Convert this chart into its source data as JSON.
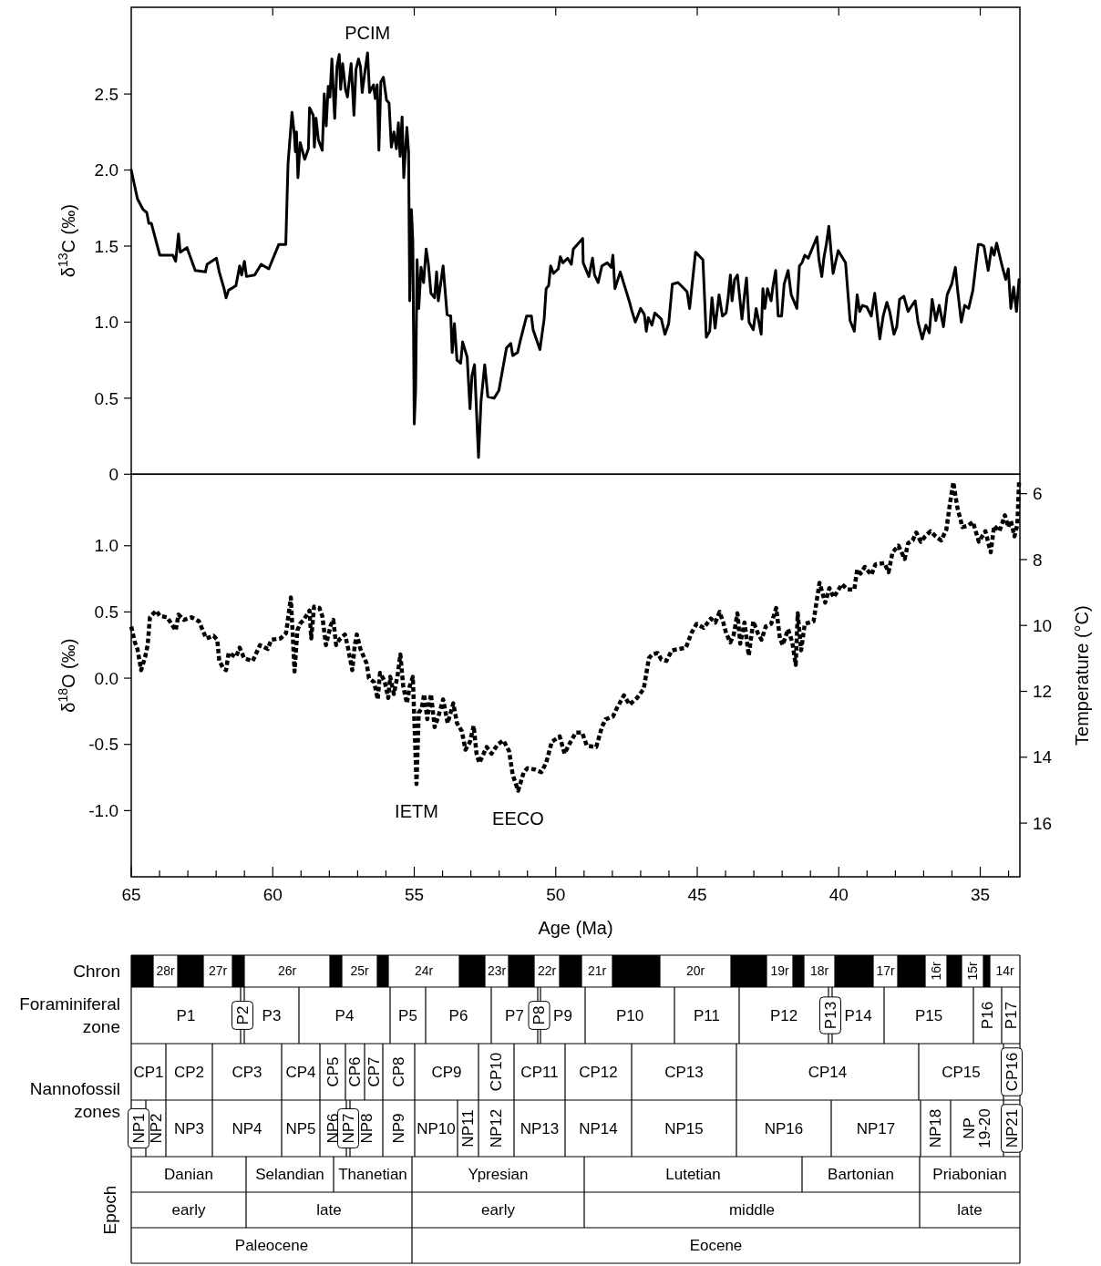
{
  "chart_data": [
    {
      "type": "line",
      "ylabel": "δ$^{13}$C (‰)",
      "xlim": [
        65,
        33.6
      ],
      "ylim": [
        0,
        3.07
      ],
      "xticks": [
        {
          "value": 60,
          "label": null
        },
        {
          "value": 55,
          "label": null
        },
        {
          "value": 50,
          "label": null
        },
        {
          "value": 45,
          "label": null
        },
        {
          "value": 40,
          "label": null
        },
        {
          "value": 35,
          "label": null
        }
      ],
      "yticks": [
        0,
        0.5,
        {
          "value": 1,
          "label": "1.0"
        },
        1.5,
        {
          "value": 2,
          "label": "2.0"
        },
        2.5
      ],
      "tick_labels": "y",
      "annotations": [
        {
          "text": "PCIM",
          "x": 56.65,
          "y": 2.77
        }
      ],
      "series": [
        {
          "color": "#000000",
          "line_style": "solid",
          "x": [
            65.0,
            64.78,
            64.58,
            64.45,
            64.38,
            64.29,
            63.99,
            63.53,
            63.43,
            63.33,
            63.27,
            63.03,
            62.74,
            62.38,
            62.32,
            61.99,
            61.89,
            61.72,
            61.65,
            61.56,
            61.3,
            61.17,
            61.1,
            61.0,
            60.93,
            60.64,
            60.41,
            60.14,
            59.79,
            59.54,
            59.46,
            59.32,
            59.24,
            59.2,
            59.16,
            59.11,
            59.03,
            58.87,
            58.74,
            58.7,
            58.57,
            58.53,
            58.47,
            58.39,
            58.25,
            58.18,
            58.11,
            58.04,
            57.98,
            57.91,
            57.85,
            57.81,
            57.73,
            57.65,
            57.6,
            57.53,
            57.43,
            57.36,
            57.23,
            57.13,
            57.06,
            56.97,
            56.9,
            56.84,
            56.77,
            56.65,
            56.58,
            56.44,
            56.38,
            56.31,
            56.25,
            56.18,
            56.09,
            55.98,
            55.89,
            55.81,
            55.72,
            55.63,
            55.56,
            55.5,
            55.43,
            55.37,
            55.26,
            55.2,
            55.16,
            55.1,
            55.05,
            55.0,
            54.95,
            54.9,
            54.84,
            54.76,
            54.67,
            54.58,
            54.5,
            54.41,
            54.28,
            54.21,
            54.15,
            53.98,
            53.84,
            53.71,
            53.66,
            53.58,
            53.49,
            53.36,
            53.29,
            53.13,
            53.03,
            52.96,
            52.87,
            52.73,
            52.64,
            52.51,
            52.4,
            52.18,
            52.01,
            51.74,
            51.59,
            51.52,
            51.35,
            51.25,
            51.03,
            50.86,
            50.8,
            50.56,
            50.41,
            50.34,
            50.25,
            50.18,
            50.08,
            49.91,
            49.84,
            49.75,
            49.58,
            49.45,
            49.38,
            49.05,
            49.03,
            48.83,
            48.7,
            48.63,
            48.5,
            48.37,
            48.18,
            48.04,
            47.98,
            47.91,
            47.72,
            47.39,
            47.32,
            47.19,
            47.0,
            46.87,
            46.8,
            46.73,
            46.6,
            46.5,
            46.27,
            46.14,
            46.01,
            45.88,
            45.68,
            45.36,
            45.27,
            45.06,
            44.8,
            44.68,
            44.56,
            44.48,
            44.37,
            44.23,
            44.11,
            43.98,
            43.91,
            43.83,
            43.77,
            43.68,
            43.58,
            43.51,
            43.42,
            43.33,
            43.26,
            43.17,
            43.02,
            42.92,
            42.82,
            42.74,
            42.68,
            42.61,
            42.52,
            42.39,
            42.33,
            42.23,
            42.14,
            42.02,
            41.93,
            41.79,
            41.68,
            41.48,
            41.39,
            41.3,
            41.2,
            41.08,
            40.77,
            40.7,
            40.6,
            40.52,
            40.44,
            40.35,
            40.27,
            40.2,
            40.02,
            39.76,
            39.6,
            39.45,
            39.35,
            39.26,
            39.16,
            39.01,
            38.85,
            38.73,
            38.55,
            38.43,
            38.3,
            38.2,
            38.05,
            37.95,
            37.85,
            37.7,
            37.55,
            37.45,
            37.3,
            37.2,
            37.05,
            36.92,
            36.8,
            36.7,
            36.57,
            36.45,
            36.3,
            36.17,
            36.01,
            35.88,
            35.8,
            35.67,
            35.55,
            35.41,
            35.26,
            35.07,
            34.97,
            34.87,
            34.72,
            34.6,
            34.51,
            34.42,
            34.32,
            34.2,
            34.1,
            34.01,
            33.92,
            33.82,
            33.72,
            33.63
          ],
          "values": [
            2.0,
            1.81,
            1.74,
            1.72,
            1.65,
            1.65,
            1.44,
            1.44,
            1.4,
            1.58,
            1.46,
            1.49,
            1.34,
            1.33,
            1.38,
            1.42,
            1.33,
            1.22,
            1.16,
            1.21,
            1.24,
            1.37,
            1.31,
            1.4,
            1.3,
            1.31,
            1.38,
            1.35,
            1.51,
            1.51,
            2.04,
            2.38,
            2.24,
            2.12,
            2.25,
            1.95,
            2.18,
            2.07,
            2.14,
            2.41,
            2.36,
            2.15,
            2.34,
            2.2,
            2.13,
            2.5,
            2.29,
            2.55,
            2.48,
            2.73,
            2.48,
            2.34,
            2.68,
            2.76,
            2.53,
            2.7,
            2.53,
            2.48,
            2.7,
            2.36,
            2.66,
            2.73,
            2.68,
            2.51,
            2.61,
            2.77,
            2.51,
            2.56,
            2.47,
            2.56,
            2.13,
            2.58,
            2.61,
            2.46,
            2.44,
            2.15,
            2.25,
            2.14,
            2.31,
            2.09,
            2.35,
            1.95,
            2.28,
            2.12,
            1.14,
            1.74,
            1.53,
            0.33,
            0.56,
            1.41,
            1.09,
            1.36,
            1.26,
            1.48,
            1.38,
            1.19,
            1.16,
            1.33,
            1.14,
            1.37,
            1.05,
            1.04,
            0.8,
            0.99,
            0.75,
            0.73,
            0.87,
            0.77,
            0.43,
            0.65,
            0.72,
            0.11,
            0.48,
            0.72,
            0.51,
            0.5,
            0.55,
            0.83,
            0.86,
            0.78,
            0.8,
            0.88,
            1.04,
            1.04,
            0.95,
            0.82,
            1.02,
            1.22,
            1.24,
            1.37,
            1.32,
            1.35,
            1.43,
            1.39,
            1.42,
            1.38,
            1.48,
            1.55,
            1.39,
            1.3,
            1.42,
            1.31,
            1.26,
            1.37,
            1.39,
            1.36,
            1.44,
            1.22,
            1.33,
            1.13,
            1.08,
            1.0,
            1.09,
            1.05,
            0.94,
            1.03,
            0.98,
            1.06,
            1.02,
            0.92,
            0.99,
            1.25,
            1.26,
            1.2,
            1.09,
            1.46,
            1.41,
            0.9,
            0.94,
            1.16,
            0.96,
            1.18,
            1.04,
            1.06,
            1.16,
            1.31,
            1.14,
            1.28,
            1.31,
            1.18,
            1.02,
            1.18,
            1.29,
            1.0,
            0.95,
            1.09,
            1.0,
            0.92,
            1.22,
            1.09,
            1.22,
            1.14,
            1.23,
            1.34,
            1.04,
            1.04,
            1.25,
            1.34,
            1.18,
            1.09,
            1.37,
            1.39,
            1.44,
            1.42,
            1.56,
            1.41,
            1.3,
            1.43,
            1.51,
            1.63,
            1.46,
            1.32,
            1.47,
            1.39,
            1.01,
            0.94,
            1.18,
            1.07,
            1.11,
            1.1,
            1.04,
            1.19,
            0.89,
            1.04,
            1.13,
            1.07,
            0.92,
            0.97,
            1.15,
            1.17,
            1.07,
            1.1,
            1.14,
            1.0,
            0.89,
            0.98,
            0.93,
            1.15,
            1.01,
            1.11,
            0.97,
            1.18,
            1.25,
            1.36,
            1.21,
            1.0,
            1.11,
            1.09,
            1.21,
            1.51,
            1.51,
            1.5,
            1.34,
            1.49,
            1.44,
            1.52,
            1.44,
            1.35,
            1.28,
            1.35,
            1.09,
            1.23,
            1.07,
            1.28
          ]
        }
      ]
    },
    {
      "type": "line",
      "xlabel": "Age (Ma)",
      "ylabel": "δ$^{18}$O (‰)",
      "y2label": "Temperature (°C)",
      "xlim": [
        65,
        33.6
      ],
      "ylim": [
        -1.5,
        1.54
      ],
      "y2lim": [
        17.63,
        5.41
      ],
      "xticks": [
        65,
        {
          "value": 64,
          "label": null
        },
        {
          "value": 63,
          "label": null
        },
        {
          "value": 62,
          "label": null
        },
        {
          "value": 61,
          "label": null
        },
        60,
        {
          "value": 59,
          "label": null
        },
        {
          "value": 58,
          "label": null
        },
        {
          "value": 57,
          "label": null
        },
        {
          "value": 56,
          "label": null
        },
        55,
        {
          "value": 54,
          "label": null
        },
        {
          "value": 53,
          "label": null
        },
        {
          "value": 52,
          "label": null
        },
        {
          "value": 51,
          "label": null
        },
        50,
        {
          "value": 49,
          "label": null
        },
        {
          "value": 48,
          "label": null
        },
        {
          "value": 47,
          "label": null
        },
        {
          "value": 46,
          "label": null
        },
        45,
        {
          "value": 44,
          "label": null
        },
        {
          "value": 43,
          "label": null
        },
        {
          "value": 42,
          "label": null
        },
        {
          "value": 41,
          "label": null
        },
        40,
        {
          "value": 39,
          "label": null
        },
        {
          "value": 38,
          "label": null
        },
        {
          "value": 37,
          "label": null
        },
        {
          "value": 36,
          "label": null
        },
        35,
        {
          "value": 34,
          "label": null
        }
      ],
      "yticks": [
        {
          "value": 1,
          "label": "1.0"
        },
        0.5,
        {
          "value": 0,
          "label": "0.0"
        },
        -0.5,
        {
          "value": -1,
          "label": "-1.0"
        }
      ],
      "y2ticks": [
        6,
        8,
        10,
        12,
        14,
        16
      ],
      "annotations": [
        {
          "text": "IETM",
          "x": 54.92,
          "y": -0.8
        },
        {
          "text": "EECO",
          "x": 51.33,
          "y": -0.85
        }
      ],
      "series": [
        {
          "color": "#000000",
          "line_style": "dotted",
          "x": [
            65.0,
            64.87,
            64.78,
            64.65,
            64.51,
            64.42,
            64.34,
            64.12,
            63.99,
            63.73,
            63.43,
            63.33,
            63.14,
            62.87,
            62.61,
            62.35,
            62.09,
            61.96,
            61.89,
            61.76,
            61.65,
            61.56,
            61.3,
            61.17,
            61.01,
            60.71,
            60.45,
            60.18,
            60.05,
            59.72,
            59.53,
            59.36,
            59.23,
            59.13,
            59.04,
            58.91,
            58.7,
            58.64,
            58.54,
            58.35,
            58.25,
            58.12,
            57.95,
            57.86,
            57.76,
            57.65,
            57.45,
            57.36,
            57.19,
            57.1,
            57.03,
            56.9,
            56.68,
            56.6,
            56.42,
            56.29,
            56.21,
            56.05,
            55.92,
            55.85,
            55.72,
            55.59,
            55.49,
            55.39,
            55.26,
            55.16,
            55.05,
            55.0,
            54.92,
            54.84,
            54.74,
            54.65,
            54.54,
            54.41,
            54.28,
            54.15,
            53.98,
            53.82,
            53.62,
            53.49,
            53.32,
            53.19,
            53.03,
            52.9,
            52.8,
            52.7,
            52.57,
            52.44,
            52.27,
            52.05,
            51.85,
            51.65,
            51.52,
            51.33,
            51.13,
            51.0,
            50.74,
            50.51,
            50.34,
            50.14,
            49.86,
            49.69,
            49.55,
            49.29,
            49.07,
            48.9,
            48.57,
            48.37,
            48.24,
            47.98,
            47.85,
            47.59,
            47.39,
            47.13,
            46.89,
            46.71,
            46.59,
            46.4,
            46.27,
            46.09,
            45.9,
            45.65,
            45.4,
            45.21,
            45.02,
            44.77,
            44.52,
            44.36,
            44.21,
            44.08,
            43.98,
            43.83,
            43.71,
            43.58,
            43.48,
            43.33,
            43.18,
            43.02,
            42.86,
            42.73,
            42.58,
            42.39,
            42.21,
            42.08,
            41.98,
            41.79,
            41.64,
            41.52,
            41.45,
            41.33,
            41.2,
            40.89,
            40.68,
            40.48,
            40.33,
            40.18,
            39.89,
            39.7,
            39.45,
            39.35,
            39.23,
            39.08,
            38.85,
            38.7,
            38.39,
            38.24,
            38.1,
            37.89,
            37.67,
            37.55,
            37.39,
            37.26,
            37.1,
            36.95,
            36.76,
            36.57,
            36.38,
            36.2,
            36.07,
            35.95,
            35.88,
            35.8,
            35.63,
            35.45,
            35.26,
            35.05,
            34.82,
            34.63,
            34.51,
            34.32,
            34.13,
            34.01,
            33.92,
            33.79,
            33.69,
            33.63
          ],
          "values": [
            0.39,
            0.27,
            0.22,
            0.06,
            0.16,
            0.25,
            0.46,
            0.51,
            0.47,
            0.46,
            0.36,
            0.48,
            0.44,
            0.46,
            0.43,
            0.3,
            0.32,
            0.29,
            0.13,
            0.08,
            0.06,
            0.19,
            0.16,
            0.23,
            0.15,
            0.13,
            0.25,
            0.22,
            0.29,
            0.3,
            0.34,
            0.61,
            0.05,
            0.36,
            0.41,
            0.44,
            0.51,
            0.3,
            0.54,
            0.53,
            0.47,
            0.25,
            0.4,
            0.44,
            0.25,
            0.29,
            0.33,
            0.25,
            0.06,
            0.25,
            0.33,
            0.22,
            0.11,
            0.0,
            -0.03,
            -0.16,
            0.04,
            -0.02,
            -0.15,
            0.01,
            -0.12,
            0.02,
            0.18,
            -0.06,
            -0.19,
            -0.06,
            0.01,
            -0.29,
            -0.8,
            -0.26,
            -0.23,
            -0.12,
            -0.31,
            -0.12,
            -0.37,
            -0.29,
            -0.16,
            -0.34,
            -0.19,
            -0.34,
            -0.4,
            -0.54,
            -0.48,
            -0.36,
            -0.57,
            -0.64,
            -0.58,
            -0.52,
            -0.57,
            -0.5,
            -0.47,
            -0.55,
            -0.73,
            -0.85,
            -0.71,
            -0.68,
            -0.69,
            -0.71,
            -0.64,
            -0.48,
            -0.44,
            -0.57,
            -0.51,
            -0.41,
            -0.41,
            -0.51,
            -0.52,
            -0.37,
            -0.31,
            -0.29,
            -0.23,
            -0.13,
            -0.2,
            -0.15,
            -0.08,
            0.15,
            0.18,
            0.19,
            0.14,
            0.13,
            0.21,
            0.22,
            0.23,
            0.34,
            0.41,
            0.38,
            0.45,
            0.42,
            0.5,
            0.42,
            0.34,
            0.27,
            0.33,
            0.49,
            0.26,
            0.42,
            0.17,
            0.43,
            0.34,
            0.29,
            0.39,
            0.41,
            0.53,
            0.3,
            0.25,
            0.37,
            0.27,
            0.1,
            0.49,
            0.21,
            0.41,
            0.43,
            0.72,
            0.57,
            0.68,
            0.61,
            0.71,
            0.67,
            0.67,
            0.82,
            0.79,
            0.84,
            0.78,
            0.86,
            0.87,
            0.8,
            0.95,
            1.0,
            0.9,
            1.02,
            1.04,
            1.1,
            1.03,
            1.07,
            1.11,
            1.07,
            1.04,
            1.12,
            1.32,
            1.48,
            1.38,
            1.28,
            1.14,
            1.15,
            1.18,
            1.03,
            1.11,
            0.95,
            1.15,
            1.11,
            1.23,
            1.14,
            1.19,
            1.07,
            1.16,
            1.48
          ]
        }
      ]
    },
    {
      "type": "other",
      "annotations": [
        "Chron",
        "Foraminiferal zone",
        "Nannofossil zones",
        "Epoch",
        "28r",
        "27r",
        "26r",
        "25r",
        "24r",
        "23r",
        "22r",
        "21r",
        "20r",
        "19r",
        "18r",
        "17r",
        "16r",
        "15r",
        "14r",
        "P1",
        "P2",
        "P3",
        "P4",
        "P5",
        "P6",
        "P7",
        "P8",
        "P9",
        "P10",
        "P11",
        "P12",
        "P13",
        "P14",
        "P15",
        "P16",
        "P17",
        "CP1",
        "CP2",
        "CP3",
        "CP4",
        "CP5",
        "CP6",
        "CP7",
        "CP8",
        "CP9",
        "CP10",
        "CP11",
        "CP12",
        "CP13",
        "CP14",
        "CP15",
        "CP16",
        "NP1",
        "NP2",
        "NP3",
        "NP4",
        "NP5",
        "NP6",
        "NP7",
        "NP8",
        "NP9",
        "NP10",
        "NP11",
        "NP12",
        "NP13",
        "NP14",
        "NP15",
        "NP16",
        "NP17",
        "NP18",
        "NP 19-20",
        "NP21",
        "Danian",
        "Selandian",
        "Thanetian",
        "Ypresian",
        "Lutetian",
        "Bartonian",
        "Priabonian",
        "early",
        "late",
        "early",
        "middle",
        "late",
        "Paleocene",
        "Eocene"
      ]
    }
  ]
}
